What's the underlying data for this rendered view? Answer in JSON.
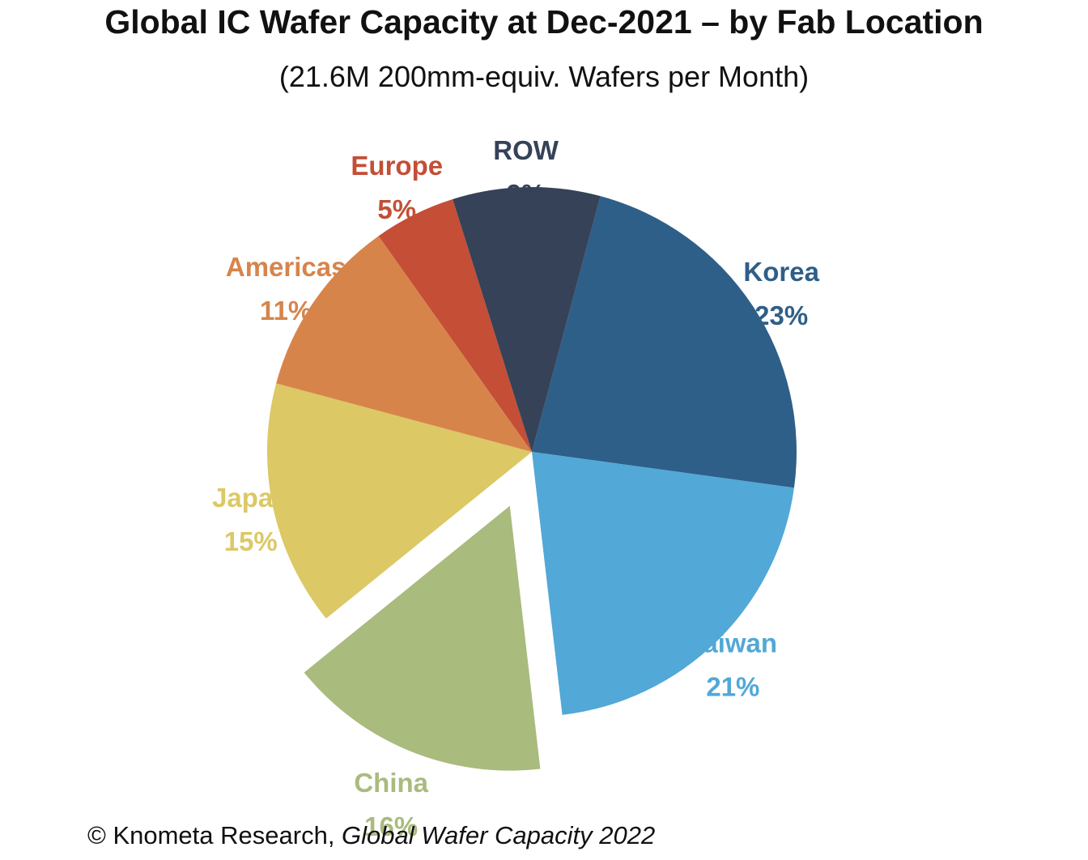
{
  "title": "Global IC Wafer Capacity at Dec-2021 – by Fab Location",
  "subtitle": "(21.6M 200mm-equiv. Wafers per Month)",
  "footer": {
    "prefix": "© Knometa Research, ",
    "publication": "Global Wafer Capacity 2022"
  },
  "chart_data": {
    "type": "pie",
    "unit": "%",
    "exploded": "China",
    "slices": [
      {
        "label": "Korea",
        "value": 23,
        "display": "23%",
        "color": "#2e5f88"
      },
      {
        "label": "Taiwan",
        "value": 21,
        "display": "21%",
        "color": "#52a8d7"
      },
      {
        "label": "China",
        "value": 16,
        "display": "16%",
        "color": "#a9bb7d"
      },
      {
        "label": "Japan",
        "value": 15,
        "display": "15%",
        "color": "#dcc865"
      },
      {
        "label": "Americas",
        "value": 11,
        "display": "11%",
        "color": "#d7844b"
      },
      {
        "label": "Europe",
        "value": 5,
        "display": "5%",
        "color": "#c44e36"
      },
      {
        "label": "ROW",
        "value": 9,
        "display": "9%",
        "color": "#354258"
      }
    ]
  }
}
